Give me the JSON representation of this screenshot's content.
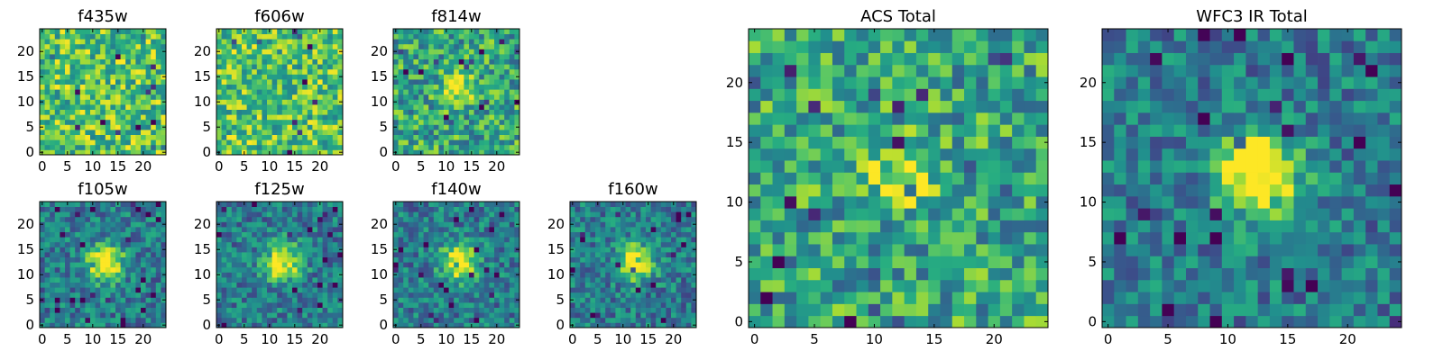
{
  "chart_data": {
    "type": "heatmap",
    "colormap": "viridis",
    "grid_size": 25,
    "panels": [
      {
        "id": "f435w",
        "title": "f435w",
        "source_peak": 0.0,
        "noise": "high",
        "xticks": [
          "0",
          "5",
          "10",
          "15",
          "20"
        ],
        "yticks": [
          "0",
          "5",
          "10",
          "15",
          "20"
        ]
      },
      {
        "id": "f606w",
        "title": "f606w",
        "source_peak": 0.0,
        "noise": "high",
        "xticks": [
          "0",
          "5",
          "10",
          "15",
          "20"
        ],
        "yticks": [
          "0",
          "5",
          "10",
          "15",
          "20"
        ]
      },
      {
        "id": "f814w",
        "title": "f814w",
        "source_peak": 0.45,
        "noise": "medium",
        "xticks": [
          "0",
          "5",
          "10",
          "15",
          "20"
        ],
        "yticks": [
          "0",
          "5",
          "10",
          "15",
          "20"
        ]
      },
      {
        "id": "f105w",
        "title": "f105w",
        "source_peak": 0.75,
        "noise": "low",
        "xticks": [
          "0",
          "5",
          "10",
          "15",
          "20"
        ],
        "yticks": [
          "0",
          "5",
          "10",
          "15",
          "20"
        ]
      },
      {
        "id": "f125w",
        "title": "f125w",
        "source_peak": 0.75,
        "noise": "low",
        "xticks": [
          "0",
          "5",
          "10",
          "15",
          "20"
        ],
        "yticks": [
          "0",
          "5",
          "10",
          "15",
          "20"
        ]
      },
      {
        "id": "f140w",
        "title": "f140w",
        "source_peak": 0.7,
        "noise": "low",
        "xticks": [
          "0",
          "5",
          "10",
          "15",
          "20"
        ],
        "yticks": [
          "0",
          "5",
          "10",
          "15",
          "20"
        ]
      },
      {
        "id": "f160w",
        "title": "f160w",
        "source_peak": 0.7,
        "noise": "low",
        "xticks": [
          "0",
          "5",
          "10",
          "15",
          "20"
        ],
        "yticks": [
          "0",
          "5",
          "10",
          "15",
          "20"
        ]
      },
      {
        "id": "acs_total",
        "title": "ACS Total",
        "source_peak": 0.35,
        "noise": "medium",
        "xticks": [
          "0",
          "5",
          "10",
          "15",
          "20"
        ],
        "yticks": [
          "0",
          "5",
          "10",
          "15",
          "20"
        ]
      },
      {
        "id": "wfc3_total",
        "title": "WFC3 IR Total",
        "source_peak": 0.8,
        "noise": "low",
        "xticks": [
          "0",
          "5",
          "10",
          "15",
          "20"
        ],
        "yticks": [
          "0",
          "5",
          "10",
          "15",
          "20"
        ]
      }
    ],
    "source_center": [
      12.5,
      12.5
    ],
    "xlim": [
      -0.5,
      24.5
    ],
    "ylim": [
      -0.5,
      24.5
    ]
  }
}
